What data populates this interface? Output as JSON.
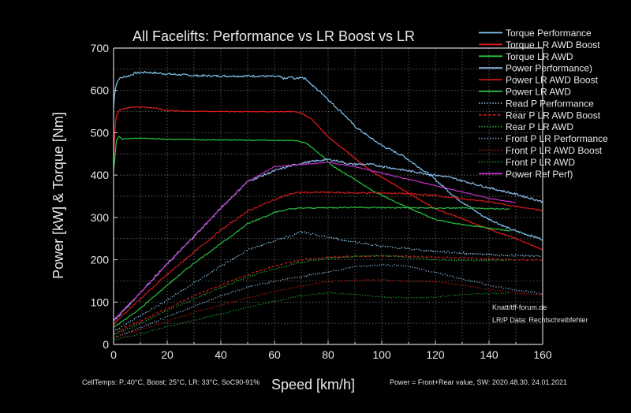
{
  "chart_data": {
    "type": "line",
    "title": "All Facelifts: Performance vs LR Boost vs LR",
    "xlabel": "Speed [km/h]",
    "ylabel": "Power [kW] & Torque [Nm]",
    "xlim": [
      0,
      160
    ],
    "ylim": [
      0,
      700
    ],
    "xticks": [
      0,
      20,
      40,
      60,
      80,
      100,
      120,
      140,
      160
    ],
    "yticks": [
      0,
      100,
      200,
      300,
      400,
      500,
      600,
      700
    ],
    "grid": "dotted",
    "legend_position": "top-right",
    "annotations": {
      "credit": "Knatt/tff-forum.de",
      "data_credit": "LR/P Data: Rechtschreibfehler",
      "footer_left": "CellTemps: P.:40°C, Boost; 25°C, LR: 33°C, SoC90-91%",
      "footer_right": "Power = Front+Rear value, SW: 2020.48.30, 24.01.2021"
    },
    "series": [
      {
        "name": "Torque Performance",
        "color": "#7fc3f0",
        "dash": "solid",
        "noise": 2.5,
        "points": [
          [
            0,
            560
          ],
          [
            0.5,
            600
          ],
          [
            1,
            615
          ],
          [
            2,
            628
          ],
          [
            4,
            632
          ],
          [
            6,
            635
          ],
          [
            8,
            641
          ],
          [
            12,
            643
          ],
          [
            20,
            639
          ],
          [
            30,
            635
          ],
          [
            40,
            634
          ],
          [
            55,
            634
          ],
          [
            62,
            632
          ],
          [
            64,
            627
          ],
          [
            66,
            632
          ],
          [
            68,
            627
          ],
          [
            70,
            632
          ],
          [
            72,
            626
          ],
          [
            74,
            612
          ],
          [
            78,
            592
          ],
          [
            82,
            566
          ],
          [
            86,
            543
          ],
          [
            90,
            515
          ],
          [
            96,
            487
          ],
          [
            100,
            470
          ],
          [
            108,
            445
          ],
          [
            118,
            400
          ],
          [
            128,
            345
          ],
          [
            138,
            302
          ],
          [
            148,
            272
          ],
          [
            160,
            248
          ]
        ]
      },
      {
        "name": "Torque LR AWD Boost",
        "color": "#e8191c",
        "dash": "solid",
        "noise": 1,
        "points": [
          [
            0,
            430
          ],
          [
            0.5,
            510
          ],
          [
            1,
            540
          ],
          [
            2,
            552
          ],
          [
            3,
            556
          ],
          [
            6,
            560
          ],
          [
            10,
            561
          ],
          [
            16,
            558
          ],
          [
            20,
            552
          ],
          [
            40,
            550
          ],
          [
            60,
            550
          ],
          [
            67,
            550
          ],
          [
            70,
            546
          ],
          [
            74,
            532
          ],
          [
            80,
            490
          ],
          [
            88,
            450
          ],
          [
            96,
            410
          ],
          [
            104,
            380
          ],
          [
            112,
            350
          ],
          [
            120,
            320
          ],
          [
            130,
            297
          ],
          [
            140,
            272
          ],
          [
            150,
            250
          ],
          [
            160,
            224
          ]
        ]
      },
      {
        "name": "Torque LR AWD",
        "color": "#23c83c",
        "dash": "solid",
        "noise": 1,
        "points": [
          [
            0,
            410
          ],
          [
            0.5,
            440
          ],
          [
            1,
            480
          ],
          [
            2,
            492
          ],
          [
            3,
            485
          ],
          [
            5,
            486
          ],
          [
            10,
            487
          ],
          [
            20,
            485
          ],
          [
            40,
            483
          ],
          [
            60,
            482
          ],
          [
            68,
            482
          ],
          [
            72,
            475
          ],
          [
            76,
            455
          ],
          [
            82,
            420
          ],
          [
            90,
            390
          ],
          [
            96,
            365
          ],
          [
            104,
            340
          ],
          [
            112,
            317
          ],
          [
            120,
            295
          ],
          [
            128,
            285
          ],
          [
            140,
            275
          ],
          [
            148,
            268
          ]
        ]
      },
      {
        "name": "Power Performance)",
        "color": "#8db8e8",
        "dash": "solid",
        "noise": 2.5,
        "points": [
          [
            0,
            55
          ],
          [
            5,
            88
          ],
          [
            10,
            123
          ],
          [
            20,
            190
          ],
          [
            30,
            255
          ],
          [
            40,
            322
          ],
          [
            50,
            385
          ],
          [
            60,
            410
          ],
          [
            65,
            420
          ],
          [
            70,
            428
          ],
          [
            75,
            433
          ],
          [
            80,
            437
          ],
          [
            84,
            433
          ],
          [
            88,
            426
          ],
          [
            96,
            425
          ],
          [
            110,
            410
          ],
          [
            125,
            395
          ],
          [
            140,
            370
          ],
          [
            150,
            355
          ],
          [
            160,
            337
          ]
        ]
      },
      {
        "name": "Power LR AWD Boost",
        "color": "#c41a1a",
        "dash": "solid",
        "noise": 2,
        "points": [
          [
            0,
            48
          ],
          [
            10,
            108
          ],
          [
            20,
            165
          ],
          [
            30,
            218
          ],
          [
            40,
            270
          ],
          [
            50,
            315
          ],
          [
            60,
            342
          ],
          [
            66,
            356
          ],
          [
            70,
            359
          ],
          [
            80,
            359
          ],
          [
            90,
            358
          ],
          [
            100,
            358
          ],
          [
            110,
            356
          ],
          [
            120,
            352
          ],
          [
            130,
            344
          ],
          [
            140,
            337
          ],
          [
            150,
            326
          ],
          [
            160,
            316
          ]
        ]
      },
      {
        "name": "Power LR AWD",
        "color": "#2ab840",
        "dash": "solid",
        "noise": 1.5,
        "points": [
          [
            0,
            40
          ],
          [
            10,
            85
          ],
          [
            20,
            140
          ],
          [
            30,
            192
          ],
          [
            40,
            238
          ],
          [
            50,
            285
          ],
          [
            60,
            312
          ],
          [
            66,
            320
          ],
          [
            70,
            322
          ],
          [
            80,
            323
          ],
          [
            90,
            324
          ],
          [
            100,
            323
          ],
          [
            110,
            323
          ],
          [
            120,
            322
          ],
          [
            130,
            322
          ],
          [
            140,
            321
          ],
          [
            148,
            320
          ]
        ]
      },
      {
        "name": "Read P Performance",
        "color": "#8ecbf0",
        "dash": "dot",
        "noise": 2.5,
        "points": [
          [
            0,
            30
          ],
          [
            10,
            68
          ],
          [
            20,
            105
          ],
          [
            30,
            145
          ],
          [
            40,
            185
          ],
          [
            50,
            223
          ],
          [
            60,
            245
          ],
          [
            65,
            255
          ],
          [
            70,
            266
          ],
          [
            76,
            258
          ],
          [
            80,
            253
          ],
          [
            90,
            242
          ],
          [
            100,
            232
          ],
          [
            110,
            226
          ],
          [
            120,
            220
          ],
          [
            140,
            212
          ],
          [
            160,
            208
          ]
        ]
      },
      {
        "name": "Rear P LR AWD Boost",
        "color": "#c01818",
        "dash": "dash",
        "noise": 1.5,
        "points": [
          [
            0,
            25
          ],
          [
            10,
            55
          ],
          [
            20,
            85
          ],
          [
            30,
            115
          ],
          [
            40,
            140
          ],
          [
            50,
            165
          ],
          [
            60,
            185
          ],
          [
            70,
            200
          ],
          [
            80,
            206
          ],
          [
            90,
            208
          ],
          [
            100,
            209
          ],
          [
            110,
            208
          ],
          [
            120,
            206
          ],
          [
            130,
            204
          ],
          [
            140,
            202
          ],
          [
            150,
            200
          ],
          [
            160,
            199
          ]
        ]
      },
      {
        "name": "Rear P LR AWD",
        "color": "#22b035",
        "dash": "dot",
        "noise": 1.5,
        "points": [
          [
            0,
            22
          ],
          [
            10,
            50
          ],
          [
            20,
            80
          ],
          [
            30,
            108
          ],
          [
            40,
            134
          ],
          [
            50,
            160
          ],
          [
            60,
            178
          ],
          [
            70,
            195
          ],
          [
            80,
            203
          ],
          [
            90,
            208
          ],
          [
            100,
            210
          ],
          [
            110,
            206
          ],
          [
            120,
            200
          ],
          [
            130,
            198
          ],
          [
            140,
            198
          ],
          [
            148,
            200
          ]
        ]
      },
      {
        "name": "Front P LR Performance",
        "color": "#7fa6c8",
        "dash": "dot",
        "noise": 2,
        "points": [
          [
            0,
            15
          ],
          [
            10,
            40
          ],
          [
            20,
            65
          ],
          [
            30,
            90
          ],
          [
            40,
            115
          ],
          [
            50,
            135
          ],
          [
            60,
            150
          ],
          [
            70,
            160
          ],
          [
            80,
            172
          ],
          [
            90,
            183
          ],
          [
            100,
            188
          ],
          [
            110,
            185
          ],
          [
            120,
            170
          ],
          [
            130,
            155
          ],
          [
            140,
            140
          ],
          [
            150,
            128
          ],
          [
            160,
            120
          ]
        ]
      },
      {
        "name": "Front P LR AWD Boost",
        "color": "#b01515",
        "dash": "dot",
        "noise": 1.5,
        "points": [
          [
            0,
            15
          ],
          [
            10,
            35
          ],
          [
            20,
            55
          ],
          [
            30,
            75
          ],
          [
            40,
            93
          ],
          [
            50,
            110
          ],
          [
            60,
            125
          ],
          [
            70,
            138
          ],
          [
            80,
            148
          ],
          [
            90,
            152
          ],
          [
            100,
            152
          ],
          [
            110,
            150
          ],
          [
            120,
            148
          ],
          [
            130,
            140
          ],
          [
            140,
            130
          ],
          [
            150,
            122
          ],
          [
            160,
            116
          ]
        ]
      },
      {
        "name": "Front P LR AWD",
        "color": "#1c8f2a",
        "dash": "dot",
        "noise": 1.5,
        "points": [
          [
            0,
            10
          ],
          [
            10,
            25
          ],
          [
            20,
            42
          ],
          [
            30,
            57
          ],
          [
            40,
            72
          ],
          [
            50,
            88
          ],
          [
            60,
            102
          ],
          [
            70,
            115
          ],
          [
            80,
            122
          ],
          [
            90,
            118
          ],
          [
            100,
            112
          ],
          [
            110,
            110
          ],
          [
            120,
            112
          ],
          [
            130,
            118
          ],
          [
            140,
            120
          ],
          [
            148,
            122
          ]
        ]
      },
      {
        "name": "Power Ref Perf)",
        "color": "#c030c8",
        "dash": "solid",
        "noise": 0.8,
        "points": [
          [
            0,
            58
          ],
          [
            10,
            122
          ],
          [
            20,
            190
          ],
          [
            30,
            255
          ],
          [
            40,
            322
          ],
          [
            50,
            385
          ],
          [
            60,
            420
          ],
          [
            70,
            425
          ],
          [
            80,
            430
          ],
          [
            90,
            420
          ],
          [
            100,
            405
          ],
          [
            110,
            390
          ],
          [
            120,
            375
          ],
          [
            130,
            360
          ],
          [
            140,
            345
          ],
          [
            150,
            335
          ]
        ]
      }
    ]
  }
}
